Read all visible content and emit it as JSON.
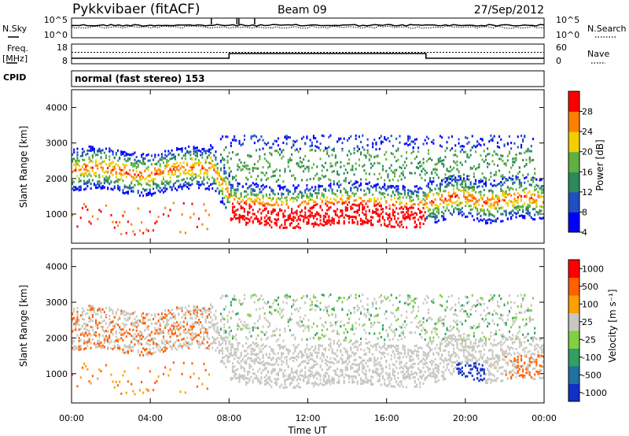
{
  "header": {
    "station": "Pykkvibaer (fitACF)",
    "beam": "Beam 09",
    "date": "27/Sep/2012"
  },
  "noise_panel": {
    "left_label": "N.Sky",
    "right_label": "N.Search",
    "left_ticks": [
      "10^5",
      "10^0"
    ],
    "right_ticks": [
      "10^5",
      "10^0"
    ]
  },
  "freq_panel": {
    "left_label": "Freq.",
    "left_unit": "[MHz]",
    "right_label": "Nave",
    "left_ticks": [
      "18",
      "8"
    ],
    "right_ticks": [
      "60",
      "0"
    ]
  },
  "cpid": {
    "label": "CPID",
    "text": "normal (fast stereo) 153"
  },
  "chart_data": [
    {
      "type": "heatmap",
      "ylabel": "Slant Range [km]",
      "ylim": [
        180,
        4500
      ],
      "yticks": [
        "4000",
        "3000",
        "2000",
        "1000"
      ],
      "xlim": [
        0,
        24
      ],
      "colorbar": {
        "label": "Power [dB]",
        "ticks": [
          "28",
          "24",
          "20",
          "16",
          "12",
          "8",
          "4"
        ],
        "colors": [
          "#0000ff",
          "#1f4fc0",
          "#2c8a5a",
          "#60b040",
          "#f0d000",
          "#ff8000",
          "#ff0000"
        ]
      }
    },
    {
      "type": "heatmap",
      "ylabel": "Slant Range [km]",
      "xlabel": "Time UT",
      "ylim": [
        180,
        4500
      ],
      "yticks": [
        "4000",
        "3000",
        "2000",
        "1000"
      ],
      "xlim": [
        0,
        24
      ],
      "xticks": [
        "00:00",
        "04:00",
        "08:00",
        "12:00",
        "16:00",
        "20:00",
        "00:00"
      ],
      "colorbar": {
        "label": "Velocity [m s⁻¹]",
        "ticks": [
          "1000",
          "500",
          "100",
          "25",
          "-25",
          "-100",
          "-500",
          "-1000"
        ],
        "colors": [
          "#1030c8",
          "#2070a0",
          "#30a060",
          "#80d040",
          "#c8c8c0",
          "#ffa000",
          "#ff6000",
          "#ff0000"
        ]
      }
    }
  ]
}
